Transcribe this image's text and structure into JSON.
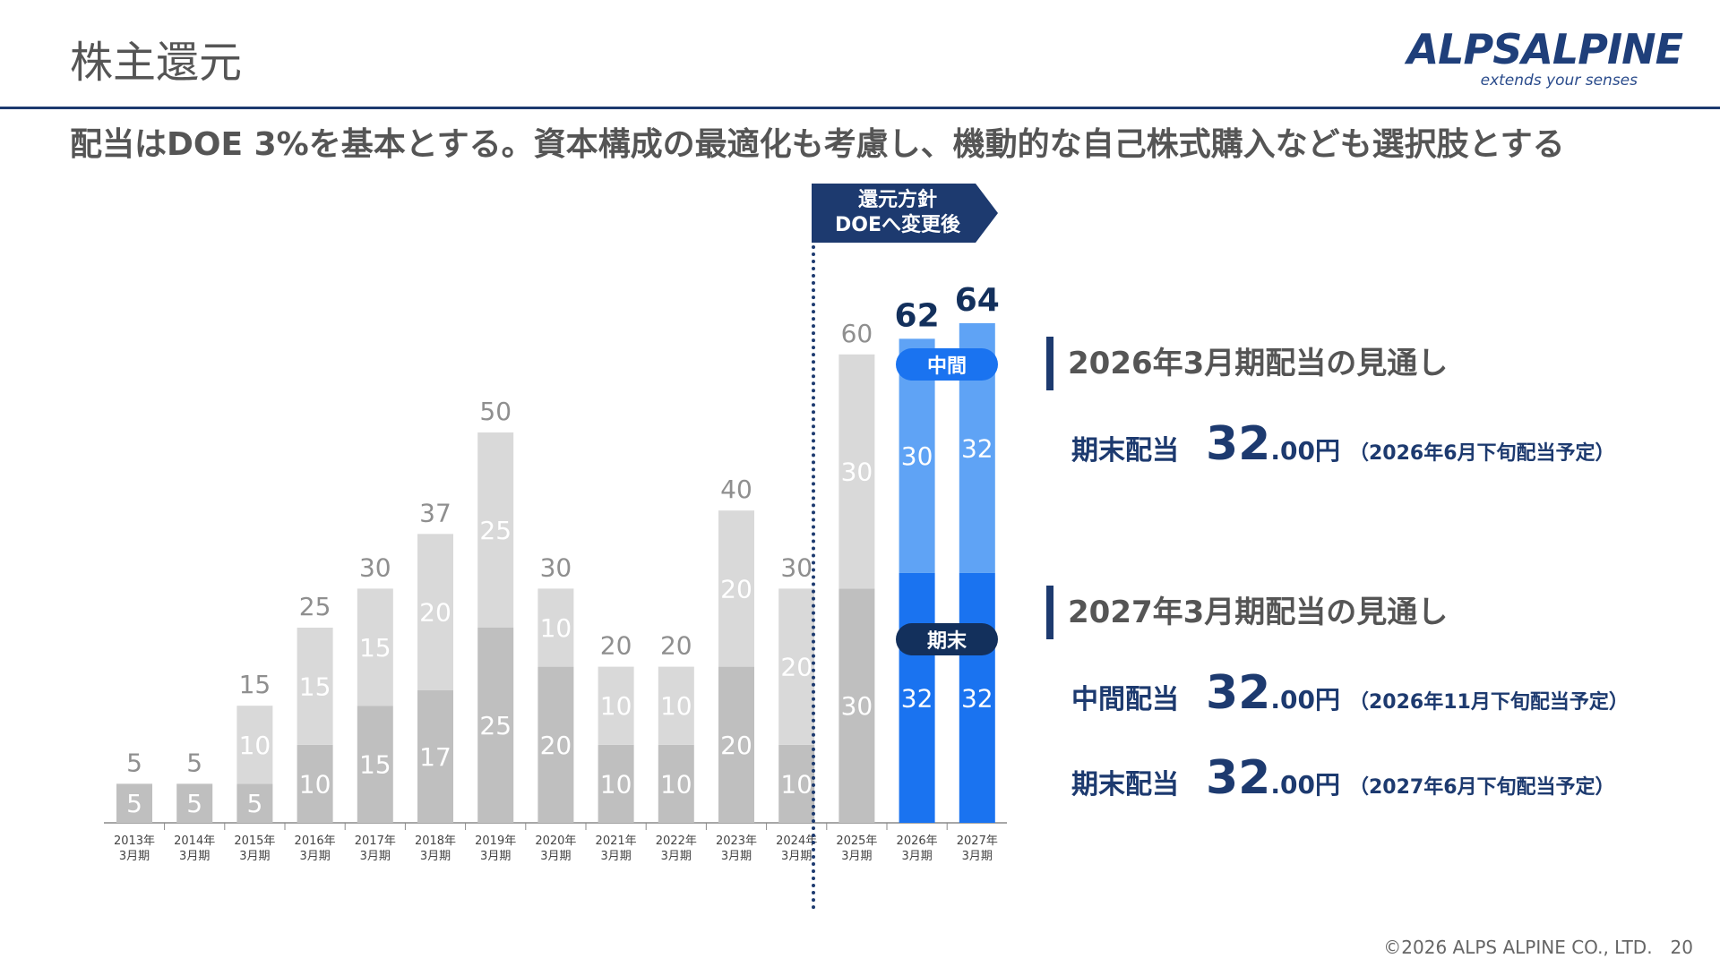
{
  "page": {
    "title": "株主還元",
    "subtitle": "配当はDOE 3%を基本とする。資本構成の最適化も考慮し、機動的な自己株式購入なども選択肢とする"
  },
  "logo": {
    "name": "ALPSALPINE",
    "tagline": "extends your senses"
  },
  "policy_flag": {
    "line1": "還元方針",
    "line2": "DOEへ変更後"
  },
  "legend_pills": {
    "interim": "中間",
    "final": "期末"
  },
  "colors": {
    "accent_navy": "#1d3a6f",
    "bar_interim_past": "#d9d9d9",
    "bar_final_past": "#bfbfbf",
    "bar_interim_forecast": "#5fa3f5",
    "bar_final_forecast": "#1a73f0"
  },
  "chart_data": {
    "type": "bar",
    "stacked": true,
    "categories": [
      "2013年3月期",
      "2014年3月期",
      "2015年3月期",
      "2016年3月期",
      "2017年3月期",
      "2018年3月期",
      "2019年3月期",
      "2020年3月期",
      "2021年3月期",
      "2022年3月期",
      "2023年3月期",
      "2024年3月期",
      "2025年3月期",
      "2026年3月期",
      "2027年3月期"
    ],
    "category_lines": [
      [
        "2013年",
        "3月期"
      ],
      [
        "2014年",
        "3月期"
      ],
      [
        "2015年",
        "3月期"
      ],
      [
        "2016年",
        "3月期"
      ],
      [
        "2017年",
        "3月期"
      ],
      [
        "2018年",
        "3月期"
      ],
      [
        "2019年",
        "3月期"
      ],
      [
        "2020年",
        "3月期"
      ],
      [
        "2021年",
        "3月期"
      ],
      [
        "2022年",
        "3月期"
      ],
      [
        "2023年",
        "3月期"
      ],
      [
        "2024年",
        "3月期"
      ],
      [
        "2025年",
        "3月期"
      ],
      [
        "2026年",
        "3月期"
      ],
      [
        "2027年",
        "3月期"
      ]
    ],
    "series": [
      {
        "name": "期末",
        "values": [
          5,
          5,
          5,
          10,
          15,
          17,
          25,
          20,
          10,
          10,
          20,
          10,
          30,
          32,
          32
        ]
      },
      {
        "name": "中間",
        "values": [
          0,
          0,
          10,
          15,
          15,
          20,
          25,
          10,
          10,
          10,
          20,
          20,
          30,
          30,
          32
        ]
      }
    ],
    "segment_labels": [
      [
        "5",
        "5",
        "5",
        "10",
        "15",
        "17",
        "25",
        "20",
        "10",
        "10",
        "20",
        "10",
        "30",
        "32",
        "32"
      ],
      [
        "",
        "",
        "10",
        "15",
        "15",
        "20",
        "25",
        "10",
        "10",
        "10",
        "20",
        "20",
        "30",
        "30",
        "32"
      ]
    ],
    "totals": [
      5,
      5,
      15,
      25,
      30,
      37,
      50,
      30,
      20,
      20,
      40,
      30,
      60,
      62,
      64
    ],
    "total_labels": [
      "5",
      "5",
      "15",
      "25",
      "30",
      "37",
      "50",
      "30",
      "20",
      "20",
      "40",
      "30",
      "60",
      "62",
      "64"
    ],
    "forecast_categories": [
      "2026年3月期",
      "2027年3月期"
    ],
    "ylim": [
      0,
      64
    ]
  },
  "outlook": [
    {
      "heading": "2026年3月期配当の見通し",
      "rows": [
        {
          "label": "期末配当",
          "int": "32",
          "dec": ".00円",
          "note": "（2026年6月下旬配当予定）"
        }
      ]
    },
    {
      "heading": "2027年3月期配当の見通し",
      "rows": [
        {
          "label": "中間配当",
          "int": "32",
          "dec": ".00円",
          "note": "（2026年11月下旬配当予定）"
        },
        {
          "label": "期末配当",
          "int": "32",
          "dec": ".00円",
          "note": "（2027年6月下旬配当予定）"
        }
      ]
    }
  ],
  "footer": {
    "copyright": "©2026 ALPS ALPINE CO., LTD.",
    "page_number": "20"
  }
}
